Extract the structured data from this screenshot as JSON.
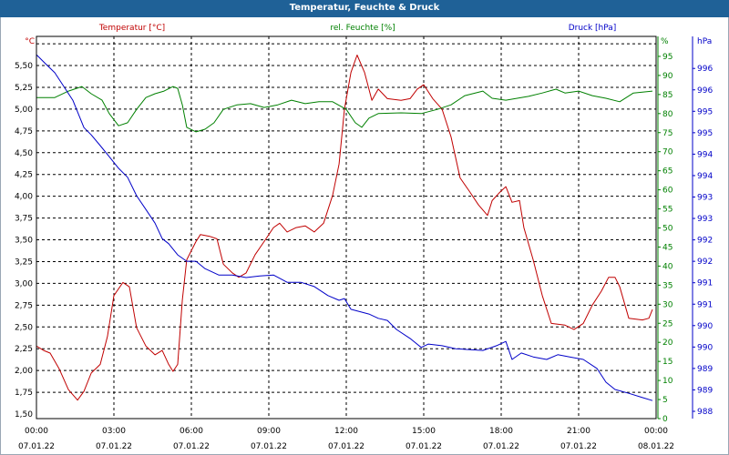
{
  "title": "Temperatur, Feuchte & Druck",
  "colors": {
    "title_bar": "#1f6197",
    "temperature": "#c00000",
    "humidity": "#008000",
    "pressure": "#0000c8"
  },
  "chart_data": {
    "type": "line",
    "title": "Temperatur, Feuchte & Druck",
    "grid": true,
    "x_ticks": [
      {
        "hour": 0,
        "time": "00:00",
        "date": "07.01.22"
      },
      {
        "hour": 3,
        "time": "03:00",
        "date": "07.01.22"
      },
      {
        "hour": 6,
        "time": "06:00",
        "date": "07.01.22"
      },
      {
        "hour": 9,
        "time": "09:00",
        "date": "07.01.22"
      },
      {
        "hour": 12,
        "time": "12:00",
        "date": "07.01.22"
      },
      {
        "hour": 15,
        "time": "15:00",
        "date": "07.01.22"
      },
      {
        "hour": 18,
        "time": "18:00",
        "date": "07.01.22"
      },
      {
        "hour": 21,
        "time": "21:00",
        "date": "07.01.22"
      },
      {
        "hour": 24,
        "time": "00:00",
        "date": "08.01.22"
      }
    ],
    "xlim": [
      0,
      24
    ],
    "axes": {
      "temperature": {
        "label": "Temperatur [°C]",
        "unit": "°C",
        "ylim": [
          1.5,
          5.75
        ],
        "ticks": [
          "1,50",
          "1,75",
          "2,00",
          "2,25",
          "2,50",
          "2,75",
          "3,00",
          "3,25",
          "3,50",
          "3,75",
          "4,00",
          "4,25",
          "4,50",
          "4,75",
          "5,00",
          "5,25",
          "5,50"
        ]
      },
      "humidity": {
        "label": "rel. Feuchte [%]",
        "unit": "%",
        "ylim": [
          0,
          100
        ],
        "ticks": [
          "0",
          "5",
          "10",
          "15",
          "20",
          "25",
          "30",
          "35",
          "40",
          "45",
          "50",
          "55",
          "60",
          "65",
          "70",
          "75",
          "80",
          "85",
          "90",
          "95"
        ]
      },
      "pressure": {
        "label": "Druck [hPa]",
        "unit": "hPa",
        "ylim": [
          988,
          996
        ],
        "ticks": [
          "988",
          "989",
          "989",
          "990",
          "990",
          "991",
          "991",
          "992",
          "992",
          "993",
          "993",
          "994",
          "994",
          "995",
          "995",
          "996",
          "996"
        ]
      }
    },
    "series": [
      {
        "name": "Temperatur [°C]",
        "axis": "temperature",
        "points": [
          [
            0,
            2.28
          ],
          [
            0.28,
            2.23
          ],
          [
            0.53,
            2.2
          ],
          [
            0.88,
            2.02
          ],
          [
            1.24,
            1.78
          ],
          [
            1.59,
            1.66
          ],
          [
            1.84,
            1.76
          ],
          [
            2.12,
            1.97
          ],
          [
            2.47,
            2.07
          ],
          [
            2.75,
            2.39
          ],
          [
            3,
            2.86
          ],
          [
            3.35,
            3.01
          ],
          [
            3.6,
            2.96
          ],
          [
            3.88,
            2.49
          ],
          [
            4.24,
            2.28
          ],
          [
            4.59,
            2.18
          ],
          [
            4.87,
            2.23
          ],
          [
            5.12,
            2.07
          ],
          [
            5.29,
            1.99
          ],
          [
            5.47,
            2.07
          ],
          [
            5.65,
            2.81
          ],
          [
            5.82,
            3.27
          ],
          [
            6.18,
            3.48
          ],
          [
            6.35,
            3.56
          ],
          [
            6.71,
            3.54
          ],
          [
            6.99,
            3.51
          ],
          [
            7.24,
            3.22
          ],
          [
            7.59,
            3.12
          ],
          [
            7.84,
            3.07
          ],
          [
            8.12,
            3.12
          ],
          [
            8.47,
            3.33
          ],
          [
            8.82,
            3.48
          ],
          [
            9.18,
            3.64
          ],
          [
            9.42,
            3.69
          ],
          [
            9.71,
            3.59
          ],
          [
            10.06,
            3.64
          ],
          [
            10.41,
            3.66
          ],
          [
            10.76,
            3.59
          ],
          [
            11.12,
            3.69
          ],
          [
            11.47,
            4.01
          ],
          [
            11.72,
            4.37
          ],
          [
            11.93,
            5.0
          ],
          [
            12.18,
            5.42
          ],
          [
            12.42,
            5.62
          ],
          [
            12.71,
            5.42
          ],
          [
            12.99,
            5.1
          ],
          [
            13.24,
            5.23
          ],
          [
            13.59,
            5.12
          ],
          [
            14.12,
            5.1
          ],
          [
            14.47,
            5.12
          ],
          [
            14.75,
            5.23
          ],
          [
            15,
            5.28
          ],
          [
            15.35,
            5.12
          ],
          [
            15.71,
            5.0
          ],
          [
            16.06,
            4.68
          ],
          [
            16.41,
            4.21
          ],
          [
            16.76,
            4.06
          ],
          [
            17.12,
            3.9
          ],
          [
            17.47,
            3.78
          ],
          [
            17.65,
            3.95
          ],
          [
            17.93,
            4.04
          ],
          [
            18.18,
            4.11
          ],
          [
            18.42,
            3.93
          ],
          [
            18.71,
            3.95
          ],
          [
            18.88,
            3.64
          ],
          [
            19.24,
            3.27
          ],
          [
            19.59,
            2.86
          ],
          [
            19.94,
            2.54
          ],
          [
            20.47,
            2.52
          ],
          [
            20.82,
            2.47
          ],
          [
            21.18,
            2.54
          ],
          [
            21.53,
            2.75
          ],
          [
            21.88,
            2.91
          ],
          [
            22.16,
            3.07
          ],
          [
            22.41,
            3.07
          ],
          [
            22.59,
            2.96
          ],
          [
            22.94,
            2.6
          ],
          [
            23.47,
            2.58
          ],
          [
            23.72,
            2.6
          ],
          [
            23.86,
            2.7
          ]
        ]
      },
      {
        "name": "rel. Feuchte [%]",
        "axis": "humidity",
        "points": [
          [
            0,
            84.2
          ],
          [
            0.71,
            84.2
          ],
          [
            1.24,
            85.9
          ],
          [
            1.76,
            87.1
          ],
          [
            2.12,
            85.2
          ],
          [
            2.54,
            83.5
          ],
          [
            2.82,
            80.0
          ],
          [
            3.18,
            76.8
          ],
          [
            3.53,
            77.6
          ],
          [
            3.88,
            81.1
          ],
          [
            4.24,
            84.2
          ],
          [
            4.59,
            85.2
          ],
          [
            4.94,
            85.9
          ],
          [
            5.29,
            87.1
          ],
          [
            5.47,
            86.6
          ],
          [
            5.65,
            82.3
          ],
          [
            5.82,
            76.4
          ],
          [
            6.18,
            75.2
          ],
          [
            6.53,
            75.9
          ],
          [
            6.88,
            77.6
          ],
          [
            7.24,
            81.1
          ],
          [
            7.77,
            82.3
          ],
          [
            8.29,
            82.6
          ],
          [
            8.82,
            81.6
          ],
          [
            9.35,
            82.3
          ],
          [
            9.88,
            83.5
          ],
          [
            10.41,
            82.6
          ],
          [
            10.94,
            83.1
          ],
          [
            11.47,
            83.1
          ],
          [
            12,
            81.1
          ],
          [
            12.35,
            77.6
          ],
          [
            12.6,
            76.4
          ],
          [
            12.88,
            78.8
          ],
          [
            13.24,
            80.0
          ],
          [
            14.12,
            80.2
          ],
          [
            14.9,
            80.0
          ],
          [
            15.53,
            81.1
          ],
          [
            16.06,
            82.3
          ],
          [
            16.59,
            84.7
          ],
          [
            17.29,
            85.9
          ],
          [
            17.65,
            84.0
          ],
          [
            18.18,
            83.5
          ],
          [
            19.06,
            84.5
          ],
          [
            19.59,
            85.4
          ],
          [
            20.12,
            86.4
          ],
          [
            20.47,
            85.4
          ],
          [
            21,
            85.9
          ],
          [
            21.53,
            84.7
          ],
          [
            22.06,
            84.0
          ],
          [
            22.59,
            83.1
          ],
          [
            23.12,
            85.4
          ],
          [
            23.86,
            85.9
          ]
        ]
      },
      {
        "name": "Druck [hPa]",
        "axis": "pressure",
        "points": [
          [
            0,
            996.32
          ],
          [
            0.35,
            996.11
          ],
          [
            0.71,
            995.9
          ],
          [
            1.06,
            995.58
          ],
          [
            1.41,
            995.26
          ],
          [
            1.84,
            994.62
          ],
          [
            2.12,
            994.45
          ],
          [
            2.47,
            994.2
          ],
          [
            2.82,
            993.94
          ],
          [
            3.18,
            993.67
          ],
          [
            3.53,
            993.46
          ],
          [
            3.88,
            993.03
          ],
          [
            4.24,
            992.71
          ],
          [
            4.59,
            992.39
          ],
          [
            4.87,
            992.03
          ],
          [
            5.12,
            991.91
          ],
          [
            5.47,
            991.65
          ],
          [
            5.82,
            991.5
          ],
          [
            6.18,
            991.5
          ],
          [
            6.53,
            991.33
          ],
          [
            7.06,
            991.18
          ],
          [
            7.59,
            991.18
          ],
          [
            8.12,
            991.12
          ],
          [
            8.65,
            991.16
          ],
          [
            9.18,
            991.18
          ],
          [
            9.71,
            991.01
          ],
          [
            10.24,
            991.01
          ],
          [
            10.76,
            990.91
          ],
          [
            11.29,
            990.7
          ],
          [
            11.72,
            990.59
          ],
          [
            11.93,
            990.63
          ],
          [
            12.18,
            990.38
          ],
          [
            12.88,
            990.27
          ],
          [
            13.24,
            990.17
          ],
          [
            13.59,
            990.12
          ],
          [
            13.94,
            989.91
          ],
          [
            14.47,
            989.7
          ],
          [
            14.9,
            989.49
          ],
          [
            15.18,
            989.57
          ],
          [
            15.71,
            989.53
          ],
          [
            16.24,
            989.46
          ],
          [
            17.29,
            989.42
          ],
          [
            17.82,
            989.53
          ],
          [
            18.18,
            989.63
          ],
          [
            18.42,
            989.21
          ],
          [
            18.78,
            989.36
          ],
          [
            19.24,
            989.27
          ],
          [
            19.76,
            989.21
          ],
          [
            20.19,
            989.32
          ],
          [
            20.65,
            989.27
          ],
          [
            21.18,
            989.21
          ],
          [
            21.71,
            989.0
          ],
          [
            22.06,
            988.68
          ],
          [
            22.41,
            988.51
          ],
          [
            22.94,
            988.42
          ],
          [
            23.47,
            988.32
          ],
          [
            23.86,
            988.25
          ]
        ]
      }
    ]
  }
}
